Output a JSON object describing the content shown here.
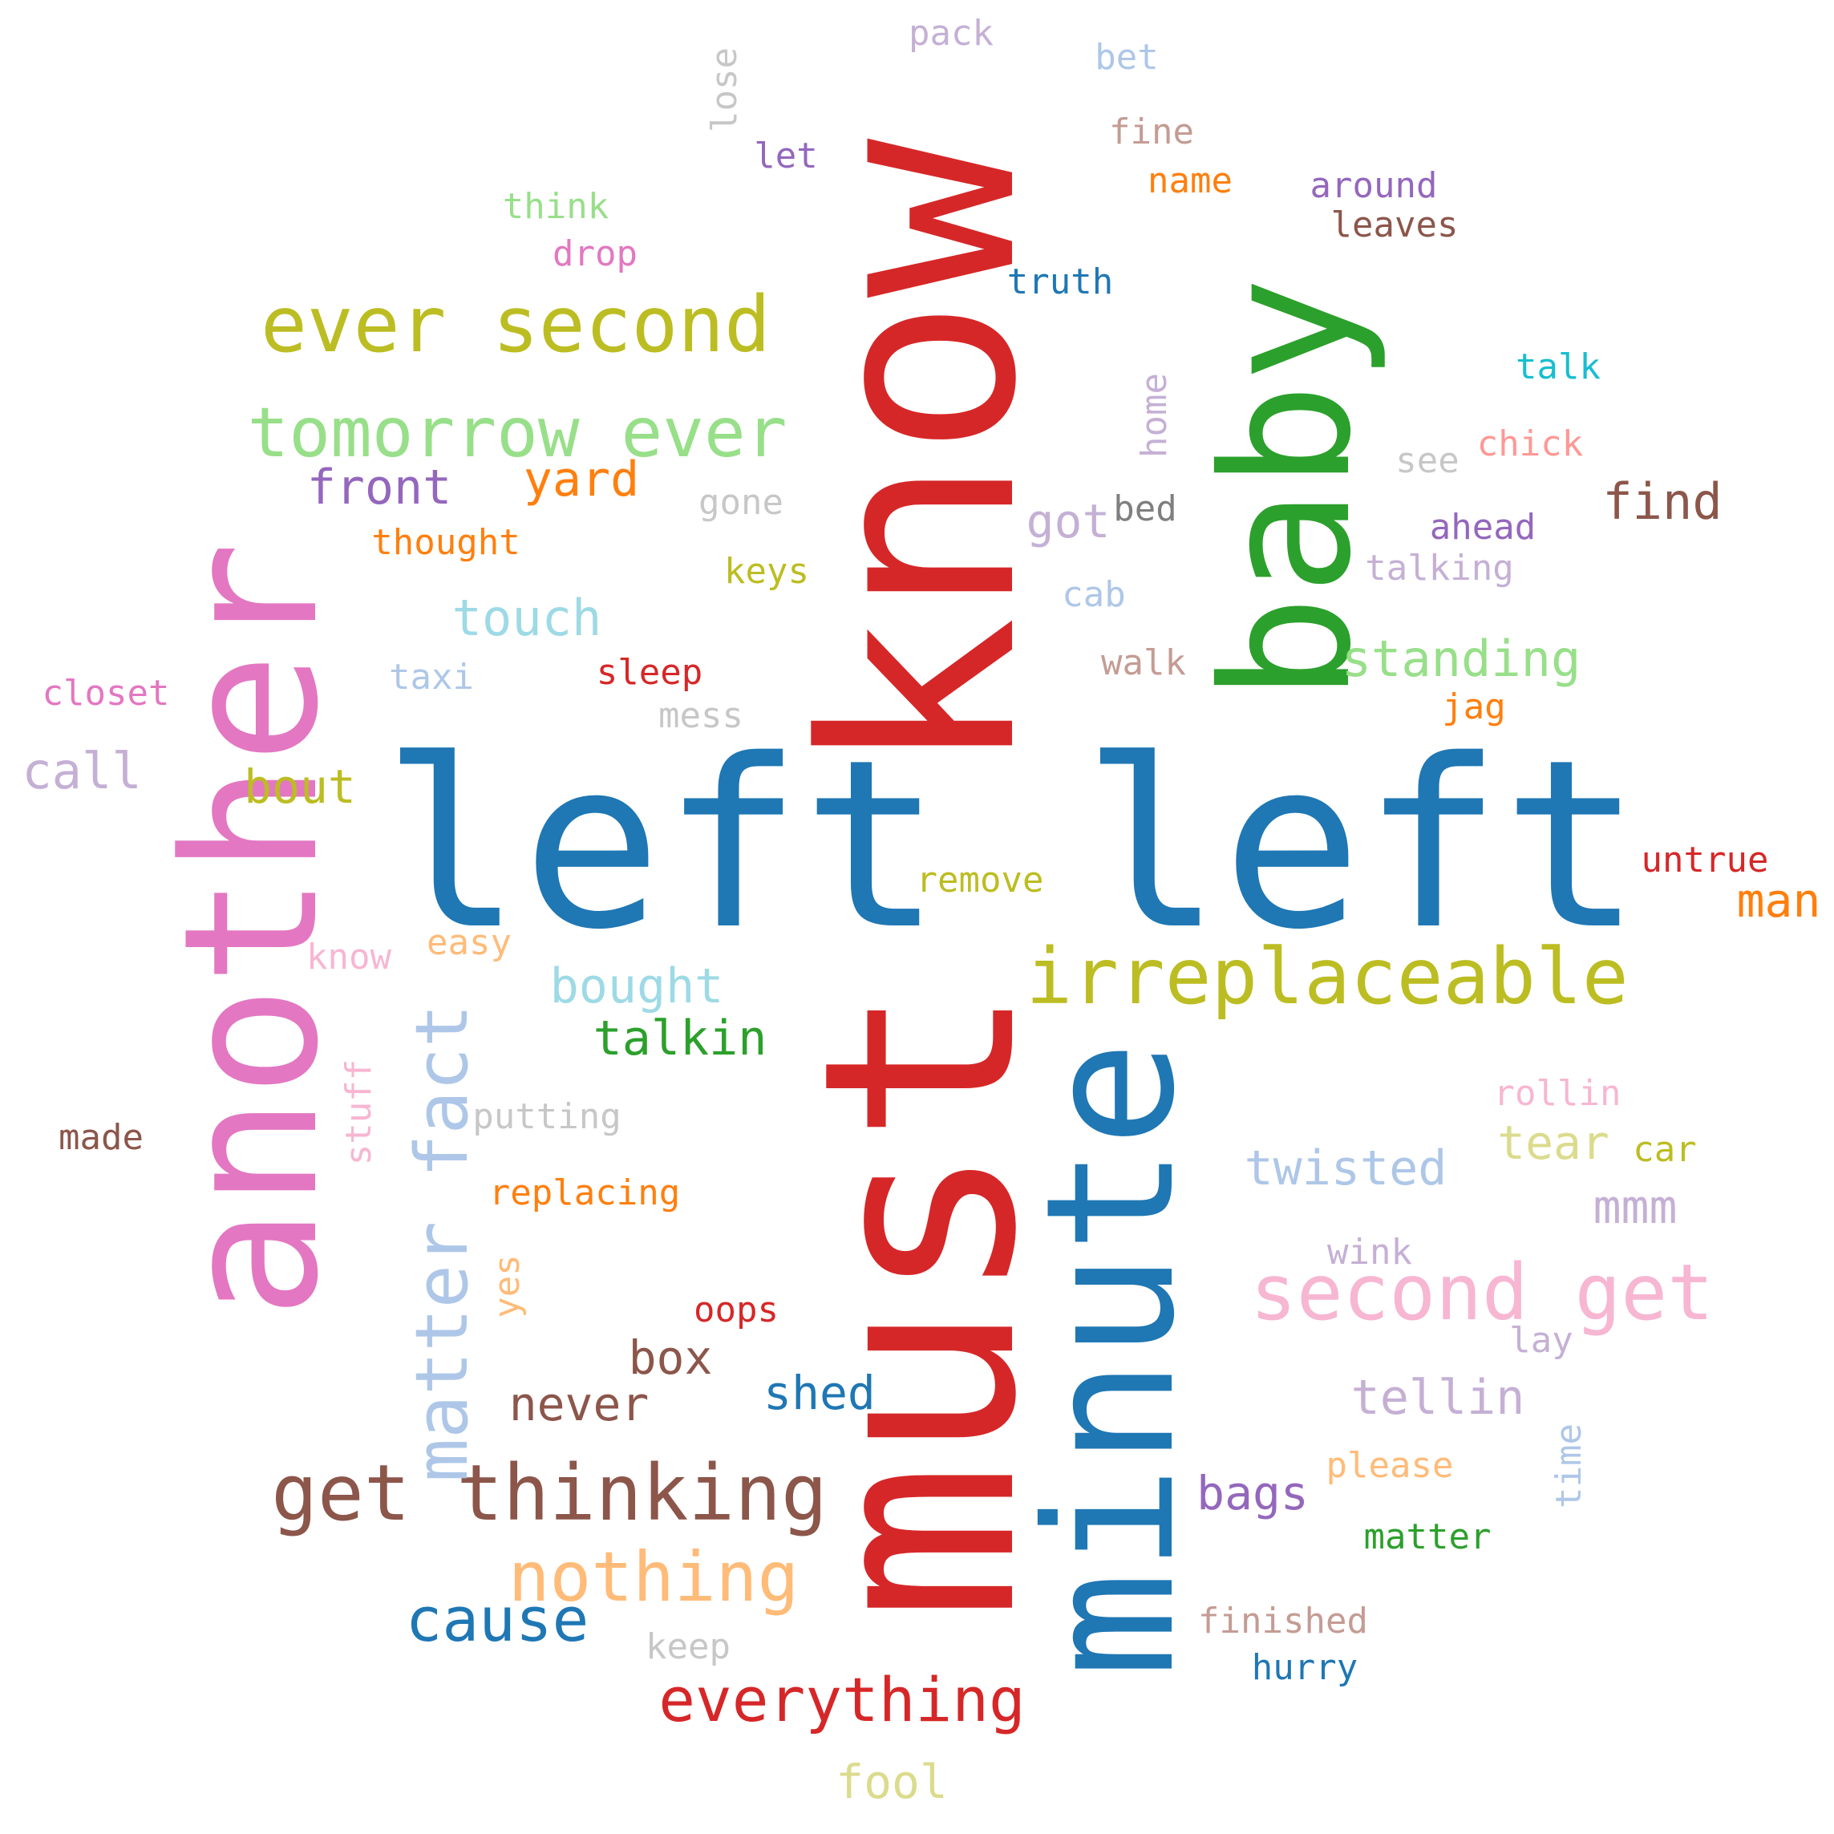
{
  "words": [
    {
      "text": "know",
      "color": "#d62728",
      "vertical": true
    },
    {
      "text": "must",
      "color": "#d62728",
      "vertical": true
    },
    {
      "text": "left left",
      "color": "#1f77b4",
      "vertical": false
    },
    {
      "text": "another",
      "color": "#e377c2",
      "vertical": true
    },
    {
      "text": "minute",
      "color": "#1f77b4",
      "vertical": true
    },
    {
      "text": "baby",
      "color": "#2ca02c",
      "vertical": true
    },
    {
      "text": "irreplaceable",
      "color": "#bcbd22",
      "vertical": false
    },
    {
      "text": "ever second",
      "color": "#bcbd22",
      "vertical": false
    },
    {
      "text": "tomorrow ever",
      "color": "#98df8a",
      "vertical": false
    },
    {
      "text": "get thinking",
      "color": "#8c564b",
      "vertical": false
    },
    {
      "text": "second get",
      "color": "#f7b6d2",
      "vertical": false
    },
    {
      "text": "matter fact",
      "color": "#aec7e8",
      "vertical": true
    },
    {
      "text": "nothing",
      "color": "#ffbb78",
      "vertical": false
    },
    {
      "text": "everything",
      "color": "#d62728",
      "vertical": false
    },
    {
      "text": "cause",
      "color": "#1f77b4",
      "vertical": false
    },
    {
      "text": "front",
      "color": "#9467bd",
      "vertical": false
    },
    {
      "text": "yard",
      "color": "#ff7f0e",
      "vertical": false
    },
    {
      "text": "touch",
      "color": "#9edae5",
      "vertical": false
    },
    {
      "text": "bout",
      "color": "#bcbd22",
      "vertical": false
    },
    {
      "text": "call",
      "color": "#c5b0d5",
      "vertical": false
    },
    {
      "text": "bought",
      "color": "#9edae5",
      "vertical": false
    },
    {
      "text": "talkin",
      "color": "#2ca02c",
      "vertical": false
    },
    {
      "text": "standing",
      "color": "#98df8a",
      "vertical": false
    },
    {
      "text": "find",
      "color": "#8c564b",
      "vertical": false
    },
    {
      "text": "got",
      "color": "#c5b0d5",
      "vertical": false
    },
    {
      "text": "twisted",
      "color": "#aec7e8",
      "vertical": false
    },
    {
      "text": "tear",
      "color": "#dbdb8d",
      "vertical": false
    },
    {
      "text": "tellin",
      "color": "#c5b0d5",
      "vertical": false
    },
    {
      "text": "mmm",
      "color": "#c5b0d5",
      "vertical": false
    },
    {
      "text": "box",
      "color": "#8c564b",
      "vertical": false
    },
    {
      "text": "never",
      "color": "#8c564b",
      "vertical": false
    },
    {
      "text": "shed",
      "color": "#1f77b4",
      "vertical": false
    },
    {
      "text": "bags",
      "color": "#9467bd",
      "vertical": false
    },
    {
      "text": "man",
      "color": "#ff7f0e",
      "vertical": false
    },
    {
      "text": "fool",
      "color": "#dbdb8d",
      "vertical": false
    },
    {
      "text": "thought",
      "color": "#ff7f0e",
      "vertical": false
    },
    {
      "text": "truth",
      "color": "#1f77b4",
      "vertical": false
    },
    {
      "text": "talk",
      "color": "#17becf",
      "vertical": false
    },
    {
      "text": "chick",
      "color": "#ff9896",
      "vertical": false
    },
    {
      "text": "ahead",
      "color": "#9467bd",
      "vertical": false
    },
    {
      "text": "talking",
      "color": "#c5b0d5",
      "vertical": false
    },
    {
      "text": "around",
      "color": "#9467bd",
      "vertical": false
    },
    {
      "text": "leaves",
      "color": "#8c564b",
      "vertical": false
    },
    {
      "text": "name",
      "color": "#ff7f0e",
      "vertical": false
    },
    {
      "text": "fine",
      "color": "#c49c94",
      "vertical": false
    },
    {
      "text": "bet",
      "color": "#aec7e8",
      "vertical": false
    },
    {
      "text": "pack",
      "color": "#c5b0d5",
      "vertical": false
    },
    {
      "text": "lose",
      "color": "#c7c7c7",
      "vertical": true
    },
    {
      "text": "let",
      "color": "#9467bd",
      "vertical": false
    },
    {
      "text": "think",
      "color": "#98df8a",
      "vertical": false
    },
    {
      "text": "drop",
      "color": "#e377c2",
      "vertical": false
    },
    {
      "text": "home",
      "color": "#c5b0d5",
      "vertical": true
    },
    {
      "text": "see",
      "color": "#c7c7c7",
      "vertical": false
    },
    {
      "text": "gone",
      "color": "#c7c7c7",
      "vertical": false
    },
    {
      "text": "bed",
      "color": "#7f7f7f",
      "vertical": false
    },
    {
      "text": "keys",
      "color": "#bcbd22",
      "vertical": false
    },
    {
      "text": "cab",
      "color": "#aec7e8",
      "vertical": false
    },
    {
      "text": "walk",
      "color": "#c49c94",
      "vertical": false
    },
    {
      "text": "jag",
      "color": "#ff7f0e",
      "vertical": false
    },
    {
      "text": "sleep",
      "color": "#d62728",
      "vertical": false
    },
    {
      "text": "taxi",
      "color": "#aec7e8",
      "vertical": false
    },
    {
      "text": "closet",
      "color": "#e377c2",
      "vertical": false
    },
    {
      "text": "mess",
      "color": "#c7c7c7",
      "vertical": false
    },
    {
      "text": "remove",
      "color": "#bcbd22",
      "vertical": false
    },
    {
      "text": "untrue",
      "color": "#d62728",
      "vertical": false
    },
    {
      "text": "know",
      "color": "#f7b6d2",
      "vertical": false
    },
    {
      "text": "easy",
      "color": "#ffbb78",
      "vertical": false
    },
    {
      "text": "stuff",
      "color": "#f7b6d2",
      "vertical": true
    },
    {
      "text": "putting",
      "color": "#c7c7c7",
      "vertical": false
    },
    {
      "text": "made",
      "color": "#8c564b",
      "vertical": false
    },
    {
      "text": "replacing",
      "color": "#ff7f0e",
      "vertical": false
    },
    {
      "text": "yes",
      "color": "#ffbb78",
      "vertical": true
    },
    {
      "text": "oops",
      "color": "#d62728",
      "vertical": false
    },
    {
      "text": "rollin",
      "color": "#f7b6d2",
      "vertical": false
    },
    {
      "text": "car",
      "color": "#bcbd22",
      "vertical": false
    },
    {
      "text": "wink",
      "color": "#c5b0d5",
      "vertical": false
    },
    {
      "text": "lay",
      "color": "#c5b0d5",
      "vertical": false
    },
    {
      "text": "please",
      "color": "#ffbb78",
      "vertical": false
    },
    {
      "text": "time",
      "color": "#aec7e8",
      "vertical": true
    },
    {
      "text": "matter",
      "color": "#2ca02c",
      "vertical": false
    },
    {
      "text": "finished",
      "color": "#c49c94",
      "vertical": false
    },
    {
      "text": "hurry",
      "color": "#1f77b4",
      "vertical": false
    },
    {
      "text": "keep",
      "color": "#c7c7c7",
      "vertical": false
    }
  ]
}
